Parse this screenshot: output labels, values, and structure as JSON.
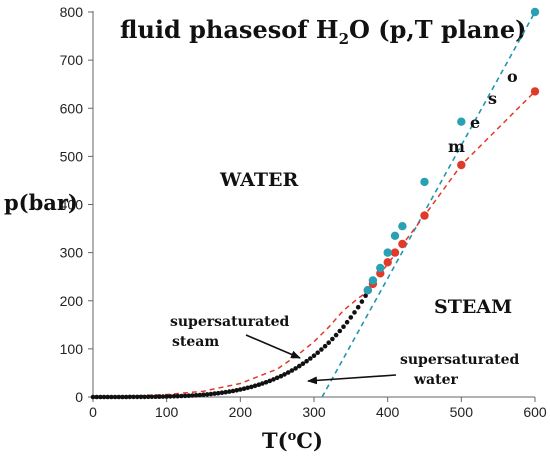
{
  "chart_data": {
    "type": "scatter",
    "title_parts": [
      "fluid phasesof H",
      "2",
      "O (p,T plane)"
    ],
    "xlabel_parts": [
      "T(",
      "o",
      "C)"
    ],
    "ylabel": "p(bar)",
    "xlim": [
      0,
      600
    ],
    "ylim": [
      0,
      800
    ],
    "xticks": [
      "0",
      "100",
      "200",
      "300",
      "400",
      "500",
      "600"
    ],
    "yticks": [
      "0",
      "100",
      "200",
      "300",
      "400",
      "500",
      "600",
      "700",
      "800"
    ],
    "grid": false,
    "colors": {
      "black": "#111111",
      "red": "#e03a2a",
      "blue": "#1f95b0",
      "teal": "#2aa0b4"
    },
    "series": [
      {
        "kind": "black-points",
        "x": [
          0,
          5,
          10,
          15,
          20,
          25,
          30,
          35,
          40,
          45,
          50,
          55,
          60,
          65,
          70,
          75,
          80,
          85,
          90,
          95,
          100,
          105,
          110,
          115,
          120,
          125,
          130,
          135,
          140,
          145,
          150,
          155,
          160,
          165,
          170,
          175,
          180,
          185,
          190,
          195,
          200,
          205,
          210,
          215,
          220,
          225,
          230,
          235,
          240,
          245,
          250,
          255,
          260,
          265,
          270,
          275,
          280,
          285,
          290,
          295,
          300,
          305,
          310,
          315,
          320,
          325,
          330,
          335,
          340,
          345,
          350,
          355,
          360,
          365,
          370,
          373
        ],
        "y": [
          0.006,
          0.009,
          0.012,
          0.017,
          0.023,
          0.032,
          0.042,
          0.056,
          0.074,
          0.096,
          0.12,
          0.16,
          0.2,
          0.25,
          0.31,
          0.39,
          0.47,
          0.58,
          0.7,
          0.85,
          1.01,
          1.21,
          1.43,
          1.69,
          1.99,
          2.32,
          2.7,
          3.13,
          3.61,
          4.16,
          4.76,
          5.43,
          6.18,
          7.0,
          7.92,
          8.92,
          10.0,
          11.2,
          12.5,
          14.0,
          15.5,
          17.2,
          19.1,
          21.0,
          23.2,
          25.5,
          28.0,
          30.6,
          33.5,
          36.5,
          39.8,
          43.3,
          47.0,
          50.9,
          55.0,
          59.5,
          64.2,
          69.2,
          74.4,
          80.0,
          85.9,
          92.1,
          98.7,
          105.6,
          112.8,
          120.5,
          128.6,
          137.1,
          146.0,
          155.4,
          165.3,
          175.7,
          186.7,
          198.3,
          210.5,
          220.6
        ]
      },
      {
        "kind": "red-dashed-spinodal",
        "x": [
          0,
          50,
          100,
          150,
          200,
          250,
          280,
          300,
          320,
          340,
          360,
          374
        ],
        "y": [
          0,
          2,
          5,
          12,
          28,
          58,
          90,
          115,
          145,
          180,
          205,
          220
        ]
      },
      {
        "kind": "blue-dashed-line",
        "x": [
          311,
          600
        ],
        "y": [
          0,
          800
        ]
      },
      {
        "kind": "red-points",
        "x": [
          373,
          380,
          390,
          400,
          410,
          420,
          450,
          500,
          600
        ],
        "y": [
          222,
          235,
          257,
          280,
          300,
          318,
          377,
          482,
          635
        ]
      },
      {
        "kind": "red-dashed-line",
        "x": [
          373,
          450,
          500,
          600
        ],
        "y": [
          222,
          377,
          482,
          635
        ]
      },
      {
        "kind": "blue-points",
        "x": [
          373,
          380,
          390,
          400,
          410,
          420,
          450,
          500,
          600
        ],
        "y": [
          222,
          242,
          268,
          300,
          335,
          355,
          447,
          572,
          800
        ]
      }
    ],
    "annotations": {
      "water": "WATER",
      "steam": "STEAM",
      "supersaturated_steam_line1": "supersaturated",
      "supersaturated_steam_line2": "steam",
      "supersaturated_water_line1": "supersaturated",
      "supersaturated_water_line2": "water",
      "meso_m": "m",
      "meso_e": "e",
      "meso_s": "s",
      "meso_o": "o"
    }
  }
}
